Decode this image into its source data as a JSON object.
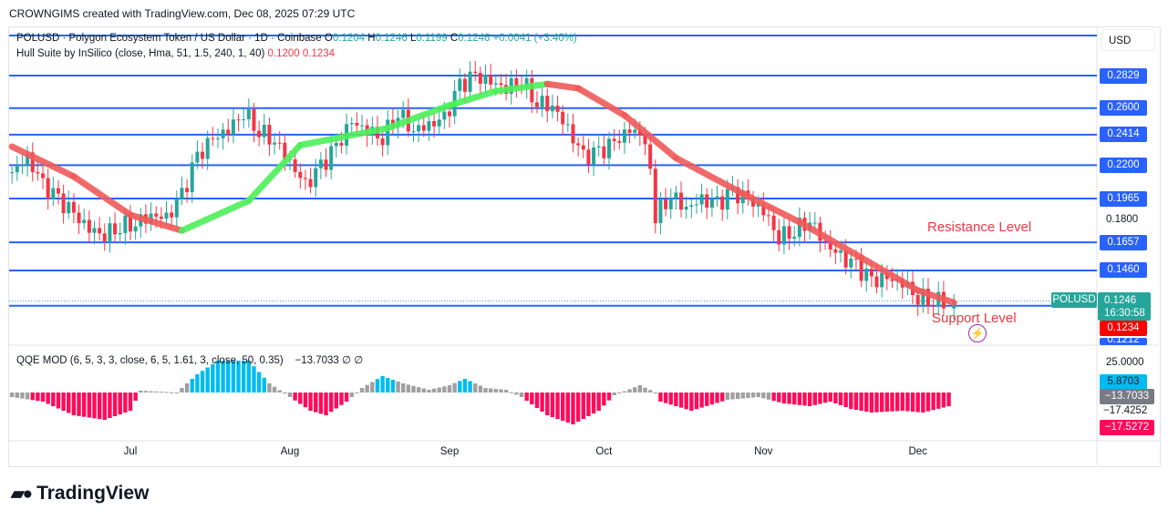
{
  "header": "CROWNGIMS created with TradingView.com, Dec 08, 2025 07:29 UTC",
  "symbol": {
    "title": "POLUSD · Polygon Ecosystem Token / US Dollar · 1D · Coinbase",
    "o_label": "O",
    "o": "0.1204",
    "h_label": "H",
    "h": "0.1246",
    "l_label": "L",
    "l": "0.1199",
    "c_label": "C",
    "c": "0.1246",
    "chg": "+0.0041 (+3.40%)"
  },
  "hull_legend": {
    "label": "Hull Suite by InSilico (close, Hma, 51, 1.5, 240, 1, 40)",
    "v1": "0.1200",
    "v2": "0.1234"
  },
  "qqe_legend": {
    "label": "QQE MOD (6, 5, 3, 3, close, 6, 5, 1.61, 3, close, 50, 0.35)",
    "value": "−13.7033",
    "sym1": "∅",
    "sym2": "∅"
  },
  "currency": "USD",
  "annotations": {
    "resistance": "Resistance Level",
    "support": "Support Level"
  },
  "price_tag": {
    "symbol": "POLUSD",
    "price": "0.1246",
    "countdown": "16:30:58",
    "hull": "0.1234"
  },
  "brand": "TradingView",
  "chart_data": {
    "type": "candlestick",
    "colors": {
      "up": "#26a69a",
      "down": "#f23645",
      "hull_up": "#4cf05a",
      "hull_down": "#f05a5a",
      "level": "#2962ff"
    },
    "levels": [
      "0.2829",
      "0.2600",
      "0.2414",
      "0.2200",
      "0.1965",
      "0.1657",
      "0.1460",
      "0.1212"
    ],
    "axis_ticks": [
      "0.1800"
    ],
    "ylim": [
      0.118,
      0.3
    ],
    "x_ticks": [
      {
        "label": "Jul",
        "date": "2025-07-01"
      },
      {
        "label": "Aug",
        "date": "2025-08-01"
      },
      {
        "label": "Sep",
        "date": "2025-09-01"
      },
      {
        "label": "Oct",
        "date": "2025-10-01"
      },
      {
        "label": "Nov",
        "date": "2025-11-01"
      },
      {
        "label": "Dec",
        "date": "2025-12-01"
      }
    ],
    "closes": [
      [
        "2025-06-08",
        0.215
      ],
      [
        "2025-06-11",
        0.225
      ],
      [
        "2025-06-14",
        0.205
      ],
      [
        "2025-06-17",
        0.195
      ],
      [
        "2025-06-20",
        0.185
      ],
      [
        "2025-06-23",
        0.175
      ],
      [
        "2025-06-26",
        0.172
      ],
      [
        "2025-06-29",
        0.178
      ],
      [
        "2025-07-02",
        0.18
      ],
      [
        "2025-07-05",
        0.185
      ],
      [
        "2025-07-08",
        0.182
      ],
      [
        "2025-07-11",
        0.198
      ],
      [
        "2025-07-14",
        0.225
      ],
      [
        "2025-07-17",
        0.238
      ],
      [
        "2025-07-20",
        0.245
      ],
      [
        "2025-07-23",
        0.258
      ],
      [
        "2025-07-26",
        0.245
      ],
      [
        "2025-07-29",
        0.238
      ],
      [
        "2025-08-01",
        0.222
      ],
      [
        "2025-08-04",
        0.205
      ],
      [
        "2025-08-07",
        0.218
      ],
      [
        "2025-08-10",
        0.232
      ],
      [
        "2025-08-13",
        0.25
      ],
      [
        "2025-08-16",
        0.245
      ],
      [
        "2025-08-19",
        0.24
      ],
      [
        "2025-08-22",
        0.258
      ],
      [
        "2025-08-25",
        0.245
      ],
      [
        "2025-08-28",
        0.248
      ],
      [
        "2025-08-31",
        0.252
      ],
      [
        "2025-09-03",
        0.275
      ],
      [
        "2025-09-06",
        0.282
      ],
      [
        "2025-09-09",
        0.278
      ],
      [
        "2025-09-12",
        0.275
      ],
      [
        "2025-09-15",
        0.28
      ],
      [
        "2025-09-18",
        0.265
      ],
      [
        "2025-09-21",
        0.262
      ],
      [
        "2025-09-24",
        0.245
      ],
      [
        "2025-09-27",
        0.225
      ],
      [
        "2025-09-30",
        0.228
      ],
      [
        "2025-10-03",
        0.235
      ],
      [
        "2025-10-06",
        0.245
      ],
      [
        "2025-10-09",
        0.24
      ],
      [
        "2025-10-11",
        0.185
      ],
      [
        "2025-10-14",
        0.2
      ],
      [
        "2025-10-17",
        0.19
      ],
      [
        "2025-10-20",
        0.195
      ],
      [
        "2025-10-23",
        0.192
      ],
      [
        "2025-10-26",
        0.2
      ],
      [
        "2025-10-29",
        0.195
      ],
      [
        "2025-11-01",
        0.188
      ],
      [
        "2025-11-04",
        0.17
      ],
      [
        "2025-11-07",
        0.175
      ],
      [
        "2025-11-10",
        0.182
      ],
      [
        "2025-11-13",
        0.165
      ],
      [
        "2025-11-16",
        0.155
      ],
      [
        "2025-11-19",
        0.148
      ],
      [
        "2025-11-22",
        0.138
      ],
      [
        "2025-11-25",
        0.14
      ],
      [
        "2025-11-28",
        0.138
      ],
      [
        "2025-12-01",
        0.128
      ],
      [
        "2025-12-04",
        0.126
      ],
      [
        "2025-12-07",
        0.1246
      ]
    ],
    "hull": [
      [
        "2025-06-08",
        0.233
      ],
      [
        "2025-06-20",
        0.212
      ],
      [
        "2025-07-01",
        0.185
      ],
      [
        "2025-07-11",
        0.174
      ],
      [
        "2025-07-24",
        0.195
      ],
      [
        "2025-08-03",
        0.234
      ],
      [
        "2025-08-20",
        0.246
      ],
      [
        "2025-09-01",
        0.262
      ],
      [
        "2025-09-10",
        0.272
      ],
      [
        "2025-09-20",
        0.277
      ],
      [
        "2025-09-26",
        0.274
      ],
      [
        "2025-10-05",
        0.255
      ],
      [
        "2025-10-15",
        0.225
      ],
      [
        "2025-10-28",
        0.2
      ],
      [
        "2025-11-08",
        0.18
      ],
      [
        "2025-11-20",
        0.155
      ],
      [
        "2025-12-01",
        0.132
      ],
      [
        "2025-12-08",
        0.1234
      ]
    ],
    "qqe": {
      "ticks": [
        "25.0000",
        "5.8703",
        "−13.7033",
        "−17.4252",
        "−17.5272"
      ],
      "values": [
        [
          "2025-06-08",
          -5
        ],
        [
          "2025-06-14",
          -10
        ],
        [
          "2025-06-20",
          -25
        ],
        [
          "2025-06-26",
          -30
        ],
        [
          "2025-07-01",
          -20
        ],
        [
          "2025-07-03",
          2
        ],
        [
          "2025-07-10",
          0
        ],
        [
          "2025-07-14",
          20
        ],
        [
          "2025-07-18",
          35
        ],
        [
          "2025-07-24",
          35
        ],
        [
          "2025-07-28",
          10
        ],
        [
          "2025-08-01",
          -5
        ],
        [
          "2025-08-05",
          -20
        ],
        [
          "2025-08-08",
          -25
        ],
        [
          "2025-08-12",
          -10
        ],
        [
          "2025-08-15",
          5
        ],
        [
          "2025-08-19",
          18
        ],
        [
          "2025-08-23",
          10
        ],
        [
          "2025-08-28",
          3
        ],
        [
          "2025-09-01",
          8
        ],
        [
          "2025-09-04",
          15
        ],
        [
          "2025-09-08",
          5
        ],
        [
          "2025-09-12",
          3
        ],
        [
          "2025-09-15",
          -5
        ],
        [
          "2025-09-20",
          -25
        ],
        [
          "2025-09-25",
          -35
        ],
        [
          "2025-09-30",
          -20
        ],
        [
          "2025-10-03",
          -3
        ],
        [
          "2025-10-08",
          8
        ],
        [
          "2025-10-11",
          0
        ],
        [
          "2025-10-12",
          -10
        ],
        [
          "2025-10-18",
          -20
        ],
        [
          "2025-10-25",
          -8
        ],
        [
          "2025-10-31",
          -5
        ],
        [
          "2025-11-05",
          -12
        ],
        [
          "2025-11-10",
          -15
        ],
        [
          "2025-11-14",
          -10
        ],
        [
          "2025-11-18",
          -18
        ],
        [
          "2025-11-22",
          -22
        ],
        [
          "2025-11-28",
          -20
        ],
        [
          "2025-12-02",
          -22
        ],
        [
          "2025-12-08",
          -13.7
        ]
      ]
    }
  }
}
